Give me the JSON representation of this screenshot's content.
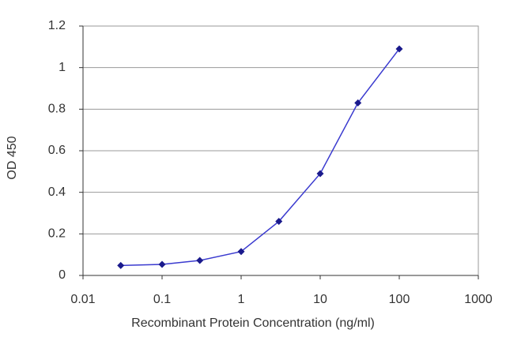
{
  "chart_data": {
    "type": "line",
    "x_label": "Recombinant Protein Concentration (ng/ml)",
    "y_label": "OD 450",
    "x": [
      0.03,
      0.1,
      0.3,
      1,
      3,
      10,
      30,
      100
    ],
    "values": [
      0.048,
      0.053,
      0.072,
      0.115,
      0.26,
      0.49,
      0.83,
      1.09
    ],
    "color": "#3a3acf",
    "marker_color": "#1a1a8c",
    "xscale": "log",
    "xlim": [
      0.01,
      1000
    ],
    "xticks": [
      0.01,
      0.1,
      1,
      10,
      100,
      1000
    ],
    "ylim": [
      0,
      1.2
    ],
    "yticks": [
      0,
      0.2,
      0.4,
      0.6,
      0.8,
      1,
      1.2
    ],
    "grid": true
  }
}
